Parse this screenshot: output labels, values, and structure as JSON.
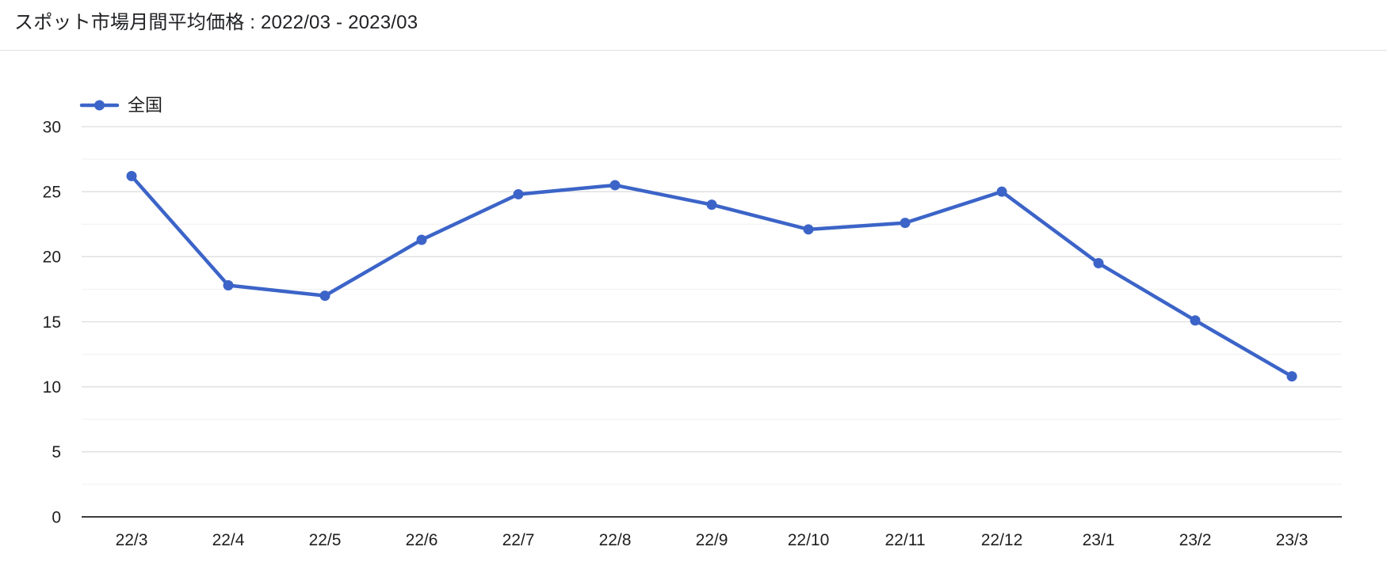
{
  "header": {
    "title": "スポット市場月間平均価格 : 2022/03 - 2023/03"
  },
  "legend": {
    "items": [
      {
        "label": "全国",
        "color": "#3c64c8"
      }
    ],
    "position": "top-left"
  },
  "chart_data": {
    "type": "line",
    "title": "スポット市場月間平均価格 : 2022/03 - 2023/03",
    "categories": [
      "22/3",
      "22/4",
      "22/5",
      "22/6",
      "22/7",
      "22/8",
      "22/9",
      "22/10",
      "22/11",
      "22/12",
      "23/1",
      "23/2",
      "23/3"
    ],
    "series": [
      {
        "name": "全国",
        "color": "#3c64c8",
        "values": [
          26.2,
          17.8,
          17.0,
          21.3,
          24.8,
          25.5,
          24.0,
          22.1,
          22.6,
          25.0,
          19.5,
          15.1,
          10.8
        ]
      }
    ],
    "xlabel": "",
    "ylabel": "",
    "ylim": [
      0,
      30
    ],
    "y_major_ticks": [
      0,
      5,
      10,
      15,
      20,
      25,
      30
    ],
    "y_minor_step": 2.5,
    "grid": true,
    "legend_position": "top-left",
    "colors": {
      "series": "#3c64c8",
      "major_grid": "#dedede",
      "minor_grid": "#f1f1f1",
      "axis_line": "#3c3c3c",
      "tick_label": "#1f1f1f",
      "title_text": "#202124",
      "background": "#ffffff"
    }
  }
}
